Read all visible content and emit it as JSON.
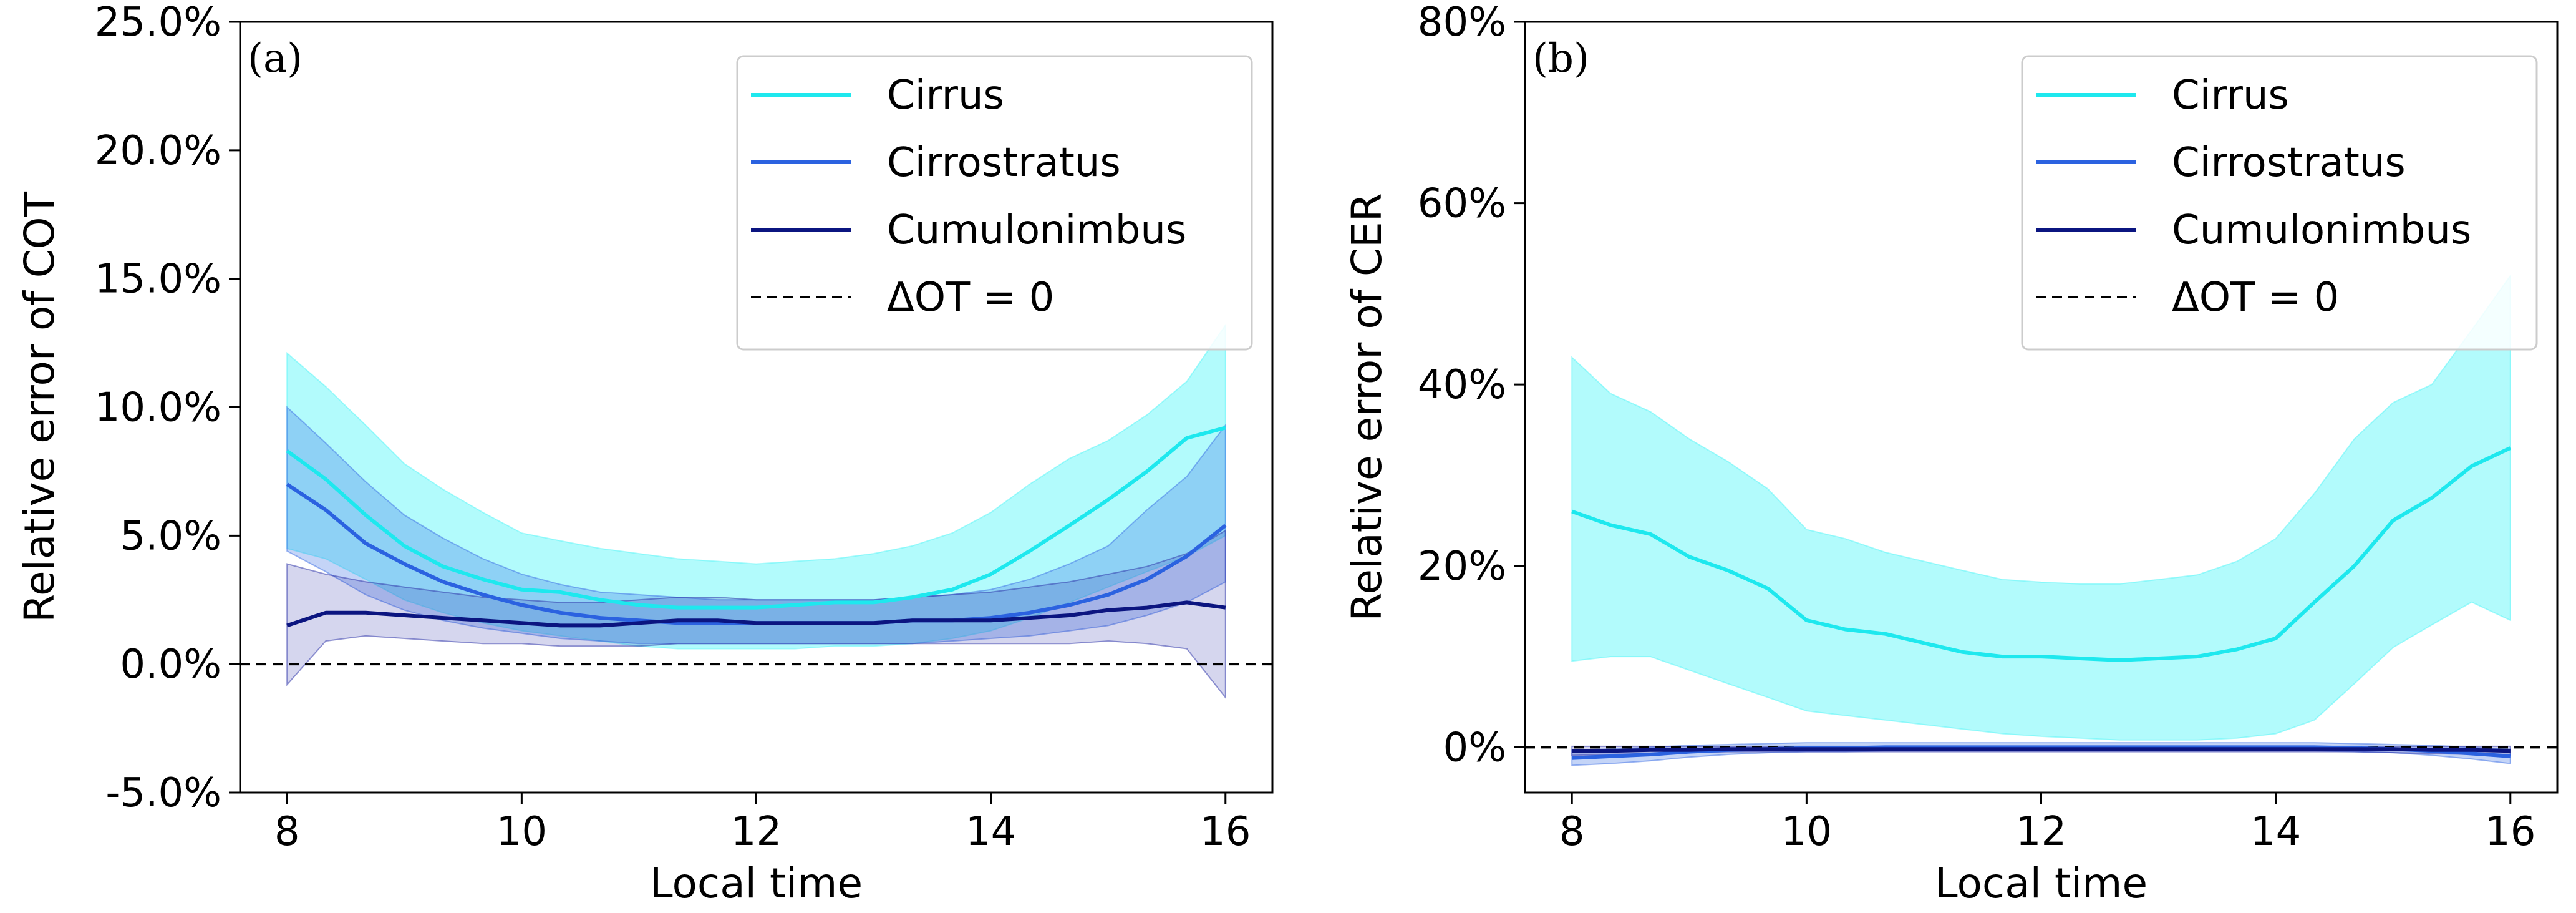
{
  "chart_data": [
    {
      "type": "line",
      "panel_label": "(a)",
      "xlabel": "Local time",
      "ylabel": "Relative error of COT",
      "xlim": [
        7.6,
        16.4
      ],
      "ylim": [
        -5,
        25
      ],
      "xticks": [
        8,
        10,
        12,
        14,
        16
      ],
      "xtick_labels": [
        "8",
        "10",
        "12",
        "14",
        "16"
      ],
      "yticks": [
        -5,
        0,
        5,
        10,
        15,
        20,
        25
      ],
      "ytick_labels": [
        "-5.0%",
        "0.0%",
        "5.0%",
        "10.0%",
        "15.0%",
        "20.0%",
        "25.0%"
      ],
      "x": [
        8,
        8.33,
        8.67,
        9,
        9.33,
        9.67,
        10,
        10.33,
        10.67,
        11,
        11.33,
        11.67,
        12,
        12.33,
        12.67,
        13,
        13.33,
        13.67,
        14,
        14.33,
        14.67,
        15,
        15.33,
        15.67,
        16
      ],
      "reference_line": {
        "label": "ΔOT = 0",
        "value": 0,
        "style": "dashed",
        "color": "#000000"
      },
      "legend_position": "top-right",
      "series": [
        {
          "name": "Cirrus",
          "color": "#1ee8ee",
          "fill_color": "#55f6f8",
          "fill_opacity": 0.45,
          "values": [
            8.3,
            7.2,
            5.8,
            4.6,
            3.8,
            3.3,
            2.9,
            2.8,
            2.5,
            2.3,
            2.2,
            2.2,
            2.2,
            2.3,
            2.4,
            2.4,
            2.6,
            2.9,
            3.5,
            4.4,
            5.4,
            6.4,
            7.5,
            8.8,
            9.2
          ],
          "lower": [
            4.5,
            4.1,
            3.3,
            2.5,
            2.0,
            1.6,
            1.3,
            1.1,
            0.9,
            0.7,
            0.6,
            0.6,
            0.6,
            0.6,
            0.7,
            0.7,
            0.8,
            1.0,
            1.3,
            1.8,
            2.4,
            3.0,
            3.6,
            4.2,
            5.0
          ],
          "upper": [
            12.1,
            10.8,
            9.3,
            7.8,
            6.8,
            5.9,
            5.1,
            4.8,
            4.5,
            4.3,
            4.1,
            4.0,
            3.9,
            4.0,
            4.1,
            4.3,
            4.6,
            5.1,
            5.9,
            7.0,
            8.0,
            8.7,
            9.7,
            11.0,
            13.2
          ]
        },
        {
          "name": "Cirrostratus",
          "color": "#2b62e0",
          "fill_color": "#3d6fe6",
          "fill_opacity": 0.3,
          "values": [
            7.0,
            6.0,
            4.7,
            3.9,
            3.2,
            2.7,
            2.3,
            2.0,
            1.8,
            1.7,
            1.6,
            1.6,
            1.6,
            1.6,
            1.6,
            1.6,
            1.7,
            1.7,
            1.8,
            2.0,
            2.3,
            2.7,
            3.3,
            4.2,
            5.4
          ],
          "lower": [
            4.4,
            3.6,
            2.7,
            2.1,
            1.7,
            1.4,
            1.2,
            1.0,
            0.9,
            0.8,
            0.8,
            0.8,
            0.8,
            0.8,
            0.8,
            0.8,
            0.8,
            0.9,
            1.0,
            1.1,
            1.3,
            1.5,
            1.9,
            2.4,
            3.2
          ],
          "upper": [
            10.0,
            8.6,
            7.1,
            5.8,
            4.9,
            4.1,
            3.5,
            3.1,
            2.8,
            2.7,
            2.6,
            2.5,
            2.5,
            2.5,
            2.5,
            2.5,
            2.6,
            2.7,
            2.9,
            3.3,
            3.9,
            4.6,
            6.0,
            7.3,
            9.3
          ]
        },
        {
          "name": "Cumulonimbus",
          "color": "#0b1580",
          "fill_color": "#2c32a8",
          "fill_opacity": 0.2,
          "values": [
            1.5,
            2.0,
            2.0,
            1.9,
            1.8,
            1.7,
            1.6,
            1.5,
            1.5,
            1.6,
            1.7,
            1.7,
            1.6,
            1.6,
            1.6,
            1.6,
            1.7,
            1.7,
            1.7,
            1.8,
            1.9,
            2.1,
            2.2,
            2.4,
            2.2
          ],
          "lower": [
            -0.8,
            0.9,
            1.1,
            1.0,
            0.9,
            0.8,
            0.8,
            0.7,
            0.7,
            0.7,
            0.8,
            0.8,
            0.8,
            0.8,
            0.8,
            0.8,
            0.8,
            0.8,
            0.8,
            0.8,
            0.8,
            0.9,
            0.8,
            0.6,
            -1.3
          ],
          "upper": [
            3.9,
            3.5,
            3.2,
            3.0,
            2.8,
            2.6,
            2.5,
            2.4,
            2.4,
            2.5,
            2.6,
            2.6,
            2.5,
            2.5,
            2.5,
            2.5,
            2.6,
            2.7,
            2.8,
            3.0,
            3.2,
            3.5,
            3.8,
            4.3,
            5.2
          ]
        }
      ]
    },
    {
      "type": "line",
      "panel_label": "(b)",
      "xlabel": "Local time",
      "ylabel": "Relative error of CER",
      "xlim": [
        7.6,
        16.4
      ],
      "ylim": [
        -5,
        80
      ],
      "xticks": [
        8,
        10,
        12,
        14,
        16
      ],
      "xtick_labels": [
        "8",
        "10",
        "12",
        "14",
        "16"
      ],
      "yticks": [
        0,
        20,
        40,
        60,
        80
      ],
      "ytick_labels": [
        "0%",
        "20%",
        "40%",
        "60%",
        "80%"
      ],
      "x": [
        8,
        8.33,
        8.67,
        9,
        9.33,
        9.67,
        10,
        10.33,
        10.67,
        11,
        11.33,
        11.67,
        12,
        12.33,
        12.67,
        13,
        13.33,
        13.67,
        14,
        14.33,
        14.67,
        15,
        15.33,
        15.67,
        16
      ],
      "reference_line": {
        "label": "ΔOT = 0",
        "value": 0,
        "style": "dashed",
        "color": "#000000"
      },
      "legend_position": "top-right",
      "series": [
        {
          "name": "Cirrus",
          "color": "#1ee8ee",
          "fill_color": "#55f6f8",
          "fill_opacity": 0.45,
          "values": [
            26.0,
            24.5,
            23.5,
            21.0,
            19.5,
            17.5,
            14.0,
            13.0,
            12.5,
            11.5,
            10.5,
            10.0,
            10.0,
            9.8,
            9.6,
            9.8,
            10.0,
            10.8,
            12.0,
            16.0,
            20.0,
            25.0,
            27.5,
            31.0,
            33.0
          ],
          "lower": [
            9.5,
            10.0,
            10.0,
            8.5,
            7.0,
            5.5,
            4.0,
            3.5,
            3.0,
            2.5,
            2.0,
            1.5,
            1.2,
            1.0,
            0.8,
            0.8,
            0.8,
            1.0,
            1.5,
            3.0,
            7.0,
            11.0,
            13.5,
            16.0,
            14.0
          ],
          "upper": [
            43.0,
            39.0,
            37.0,
            34.0,
            31.5,
            28.5,
            24.0,
            23.0,
            21.5,
            20.5,
            19.5,
            18.5,
            18.2,
            18.0,
            18.0,
            18.5,
            19.0,
            20.5,
            23.0,
            28.0,
            34.0,
            38.0,
            40.0,
            46.0,
            52.0
          ]
        },
        {
          "name": "Cirrostratus",
          "color": "#2b62e0",
          "fill_color": "#3d6fe6",
          "fill_opacity": 0.3,
          "values": [
            -1.2,
            -1.0,
            -0.8,
            -0.5,
            -0.3,
            -0.2,
            -0.1,
            -0.1,
            0,
            0,
            0,
            0,
            0,
            0,
            0,
            0,
            0,
            0,
            0,
            0,
            -0.1,
            -0.2,
            -0.4,
            -0.7,
            -1.0
          ],
          "lower": [
            -2.0,
            -1.8,
            -1.5,
            -1.1,
            -0.8,
            -0.6,
            -0.5,
            -0.5,
            -0.4,
            -0.4,
            -0.4,
            -0.4,
            -0.4,
            -0.4,
            -0.4,
            -0.4,
            -0.4,
            -0.4,
            -0.4,
            -0.4,
            -0.5,
            -0.6,
            -0.9,
            -1.3,
            -1.8
          ],
          "upper": [
            -0.3,
            -0.2,
            0,
            0.2,
            0.3,
            0.4,
            0.5,
            0.5,
            0.5,
            0.5,
            0.5,
            0.5,
            0.5,
            0.5,
            0.5,
            0.5,
            0.5,
            0.5,
            0.5,
            0.5,
            0.4,
            0.3,
            0.2,
            0,
            -0.2
          ]
        },
        {
          "name": "Cumulonimbus",
          "color": "#0b1580",
          "fill_color": "#2c32a8",
          "fill_opacity": 0.2,
          "values": [
            -0.4,
            -0.4,
            -0.3,
            -0.3,
            -0.2,
            -0.2,
            -0.2,
            -0.2,
            -0.2,
            -0.2,
            -0.2,
            -0.2,
            -0.2,
            -0.2,
            -0.2,
            -0.2,
            -0.2,
            -0.2,
            -0.2,
            -0.2,
            -0.2,
            -0.2,
            -0.3,
            -0.3,
            -0.4
          ],
          "lower": [
            -0.9,
            -0.8,
            -0.7,
            -0.6,
            -0.5,
            -0.5,
            -0.5,
            -0.5,
            -0.5,
            -0.5,
            -0.5,
            -0.5,
            -0.5,
            -0.5,
            -0.5,
            -0.5,
            -0.5,
            -0.5,
            -0.5,
            -0.5,
            -0.5,
            -0.6,
            -0.7,
            -0.8,
            -0.9
          ],
          "upper": [
            0.1,
            0.1,
            0.1,
            0.1,
            0.1,
            0.1,
            0.1,
            0.1,
            0.1,
            0.1,
            0.1,
            0.1,
            0.1,
            0.1,
            0.1,
            0.1,
            0.1,
            0.1,
            0.1,
            0.1,
            0.1,
            0.1,
            0.1,
            0.1,
            0.1
          ]
        }
      ]
    }
  ]
}
